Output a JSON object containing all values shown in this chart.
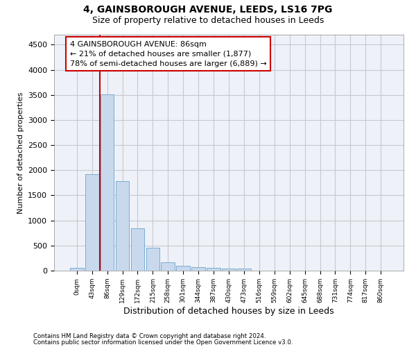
{
  "title_line1": "4, GAINSBOROUGH AVENUE, LEEDS, LS16 7PG",
  "title_line2": "Size of property relative to detached houses in Leeds",
  "xlabel": "Distribution of detached houses by size in Leeds",
  "ylabel": "Number of detached properties",
  "bar_color": "#c8d9ee",
  "bar_edge_color": "#7aaad0",
  "grid_color": "#c8c8d0",
  "bg_color": "#eef2f8",
  "vline_color": "#cc0000",
  "vline_x_index": 2,
  "annotation_box_color": "#cc0000",
  "annotation_title": "4 GAINSBOROUGH AVENUE: 86sqm",
  "annotation_line1": "← 21% of detached houses are smaller (1,877)",
  "annotation_line2": "78% of semi-detached houses are larger (6,889) →",
  "categories": [
    "0sqm",
    "43sqm",
    "86sqm",
    "129sqm",
    "172sqm",
    "215sqm",
    "258sqm",
    "301sqm",
    "344sqm",
    "387sqm",
    "430sqm",
    "473sqm",
    "516sqm",
    "559sqm",
    "602sqm",
    "645sqm",
    "688sqm",
    "731sqm",
    "774sqm",
    "817sqm",
    "860sqm"
  ],
  "values": [
    50,
    1920,
    3510,
    1790,
    840,
    460,
    160,
    100,
    65,
    55,
    40,
    35,
    0,
    0,
    0,
    0,
    0,
    0,
    0,
    0,
    0
  ],
  "ylim": [
    0,
    4700
  ],
  "yticks": [
    0,
    500,
    1000,
    1500,
    2000,
    2500,
    3000,
    3500,
    4000,
    4500
  ],
  "footnote1": "Contains HM Land Registry data © Crown copyright and database right 2024.",
  "footnote2": "Contains public sector information licensed under the Open Government Licence v3.0."
}
